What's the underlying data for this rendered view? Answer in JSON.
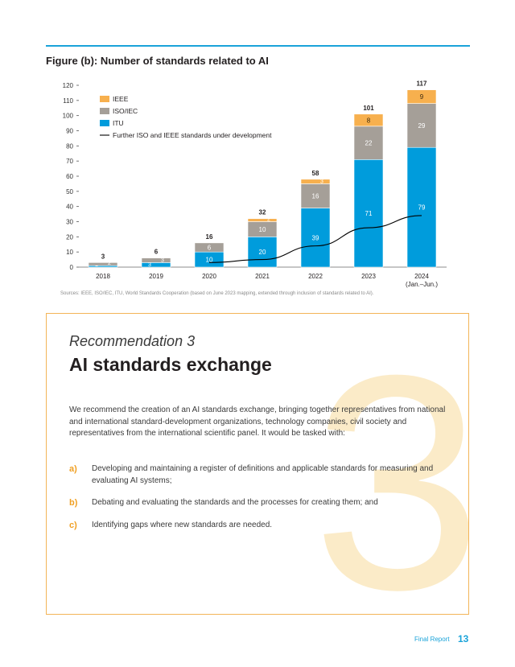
{
  "figure": {
    "title": "Figure (b): Number of standards related to AI",
    "sources": "Sources: IEEE, ISO/IEC, ITU, World Standards Cooperation (based on June 2023 mapping, extended through inclusion of standards related to AI)."
  },
  "chart_data": {
    "type": "bar",
    "stacked": true,
    "categories": [
      "2018",
      "2019",
      "2020",
      "2021",
      "2022",
      "2023",
      "2024"
    ],
    "category_sublabels": [
      "",
      "",
      "",
      "",
      "",
      "",
      "(Jan.–Jun.)"
    ],
    "series": [
      {
        "name": "ITU",
        "color": "#009cdc",
        "values": [
          1,
          3,
          10,
          20,
          39,
          71,
          79
        ]
      },
      {
        "name": "ISO/IEC",
        "color": "#a59f98",
        "values": [
          2,
          3,
          6,
          10,
          16,
          22,
          29
        ]
      },
      {
        "name": "IEEE",
        "color": "#f7b04e",
        "values": [
          0,
          0,
          0,
          2,
          3,
          8,
          9
        ]
      }
    ],
    "totals": [
      3,
      6,
      16,
      32,
      58,
      101,
      117
    ],
    "line": {
      "name": "Further ISO and IEEE standards under development",
      "color": "#000000",
      "points": [
        [
          2.0,
          3
        ],
        [
          3.0,
          5
        ],
        [
          4.0,
          14
        ],
        [
          5.0,
          26
        ],
        [
          6.0,
          34
        ]
      ]
    },
    "ylim": [
      0,
      120
    ],
    "yticks": [
      0,
      10,
      20,
      30,
      40,
      50,
      60,
      70,
      80,
      90,
      100,
      110,
      120
    ],
    "legend": [
      "IEEE",
      "ISO/IEC",
      "ITU",
      "Further ISO and IEEE standards under development"
    ],
    "legend_position": "top-left"
  },
  "recommendation": {
    "kicker": "Recommendation 3",
    "title": "AI standards exchange",
    "big_numeral": "3",
    "intro": "We recommend the creation of an AI standards exchange, bringing together representatives from national and international standard-development organizations, technology companies, civil society and representatives from the international scientific panel. It would be tasked with:",
    "items": [
      {
        "letter": "a)",
        "text": "Developing and maintaining a register of definitions and applicable standards for measuring and evaluating AI systems;"
      },
      {
        "letter": "b)",
        "text": "Debating and evaluating the standards and the processes for creating them; and"
      },
      {
        "letter": "c)",
        "text": "Identifying gaps where new standards are needed."
      }
    ]
  },
  "footer": {
    "label": "Final Report",
    "page": "13"
  }
}
